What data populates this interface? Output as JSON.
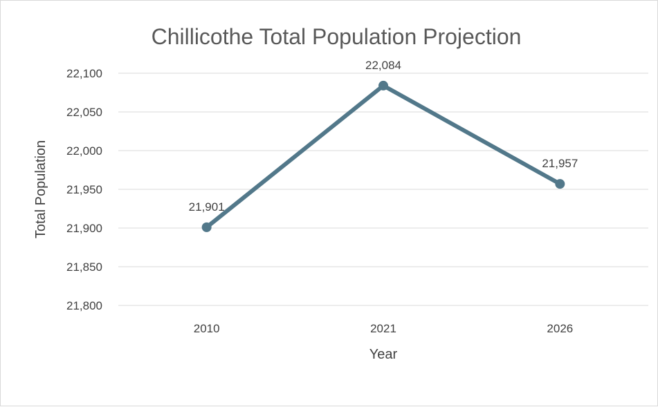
{
  "chart_data": {
    "type": "line",
    "title": "Chillicothe Total Population Projection",
    "xlabel": "Year",
    "ylabel": "Total Population",
    "categories": [
      "2010",
      "2021",
      "2026"
    ],
    "series": [
      {
        "values": [
          21901,
          22084,
          21957
        ],
        "data_labels": [
          "21,901",
          "22,084",
          "21,957"
        ],
        "color": "#52788a"
      }
    ],
    "ylim": [
      21800,
      22100
    ],
    "yticks": [
      21800,
      21850,
      21900,
      21950,
      22000,
      22050,
      22100
    ],
    "ytick_labels": [
      "21,800",
      "21,850",
      "21,900",
      "21,950",
      "22,000",
      "22,050",
      "22,100"
    ],
    "grid": true,
    "legend": "none",
    "colors": {
      "line": "#52788a",
      "grid": "#d9d9d9",
      "text": "#404040",
      "title": "#595959"
    }
  }
}
